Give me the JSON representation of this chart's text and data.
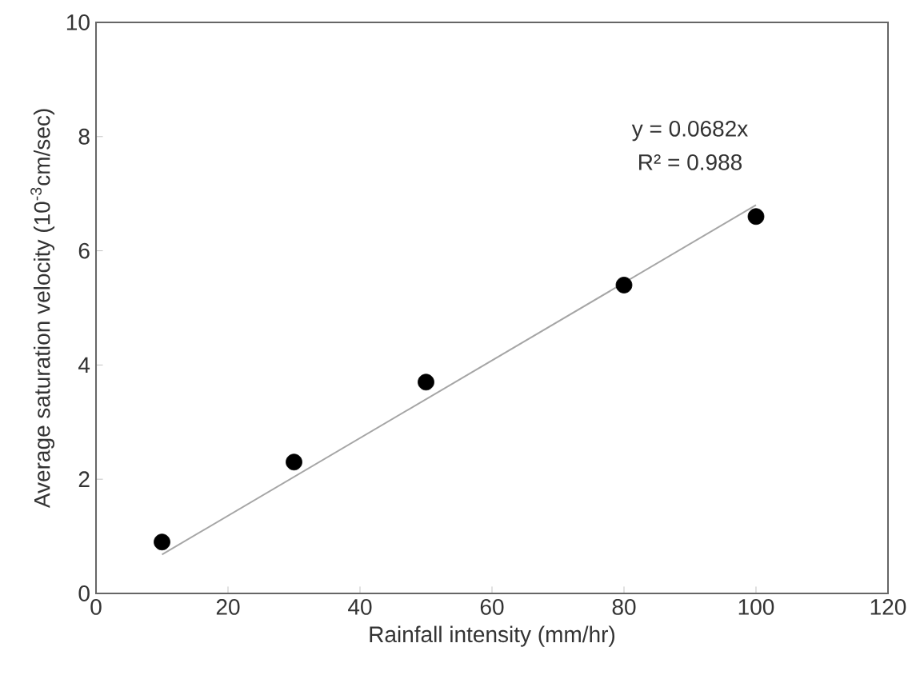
{
  "chart_data": {
    "type": "scatter",
    "xlabel": "Rainfall intensity (mm/hr)",
    "ylabel": "Average saturation velocity (10$^{-3}$cm/sec)",
    "xlim": [
      0,
      120
    ],
    "ylim": [
      0,
      10
    ],
    "xticks": [
      0,
      20,
      40,
      60,
      80,
      100,
      120
    ],
    "yticks": [
      0,
      2,
      4,
      6,
      8,
      10
    ],
    "series": [
      {
        "color": "#000000",
        "marker": "circle",
        "x": [
          10,
          30,
          50,
          80,
          100
        ],
        "values": [
          0.9,
          2.3,
          3.7,
          5.4,
          6.6
        ]
      },
      {
        "type": "line",
        "color": "#a6a6a6",
        "marker": "none",
        "x": [
          10,
          100
        ],
        "values": [
          0.68,
          6.8
        ]
      }
    ],
    "annotations": [
      "y = 0.0682x",
      "R² = 0.988"
    ]
  }
}
